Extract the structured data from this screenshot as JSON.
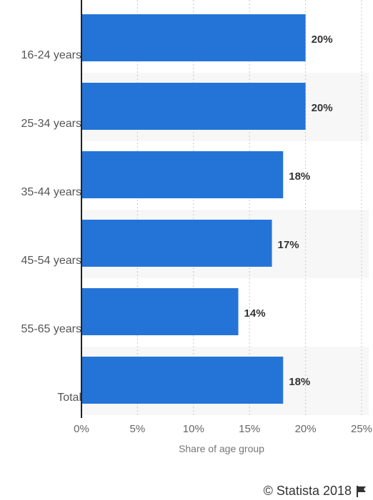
{
  "chart_data": {
    "type": "bar",
    "orientation": "horizontal",
    "categories": [
      "16-24 years",
      "25-34 years",
      "35-44 years",
      "45-54 years",
      "55-65 years",
      "Total"
    ],
    "values": [
      20,
      20,
      18,
      17,
      14,
      18
    ],
    "value_labels": [
      "20%",
      "20%",
      "18%",
      "17%",
      "14%",
      "18%"
    ],
    "xlim": [
      0,
      25
    ],
    "xticks": [
      0,
      5,
      10,
      15,
      20,
      25
    ],
    "xtick_labels": [
      "0%",
      "5%",
      "10%",
      "15%",
      "20%",
      "25%"
    ],
    "xlabel": "Share of age group",
    "ylabel": "",
    "title": "",
    "grid": true,
    "bar_color": "#2474d8"
  },
  "footer": {
    "credit": "© Statista 2018",
    "icon": "flag-icon"
  }
}
